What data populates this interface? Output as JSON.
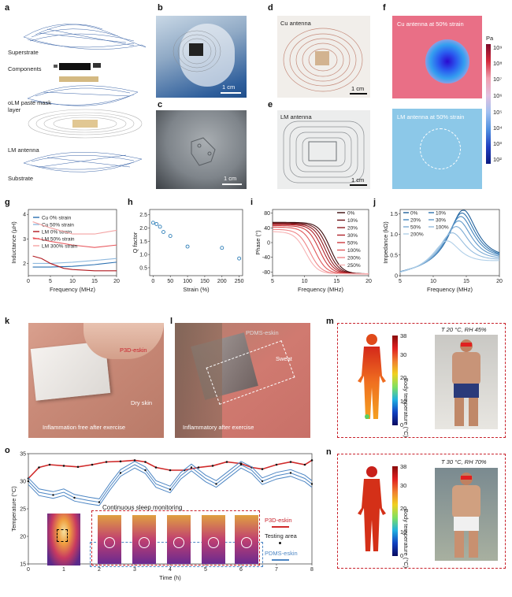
{
  "panels": {
    "a": {
      "label": "a",
      "layers": [
        "Superstrate",
        "Components",
        "oLM paste mask layer",
        "LM antenna",
        "Substrate"
      ]
    },
    "b": {
      "label": "b",
      "scale": "1 cm"
    },
    "c": {
      "label": "c",
      "scale": "1 cm"
    },
    "d": {
      "label": "d",
      "title": "Cu antenna",
      "scale": "1 cm"
    },
    "e": {
      "label": "e",
      "title": "LM antenna",
      "scale": "1 cm"
    },
    "f": {
      "label": "f",
      "top_title": "Cu antenna at 50% strain",
      "bottom_title": "LM antenna at 50% strain",
      "unit": "Pa",
      "ticks": [
        "10⁹",
        "10⁸",
        "10⁷",
        "10⁶",
        "10⁵",
        "10⁴",
        "10³",
        "10²"
      ]
    },
    "k": {
      "label": "k",
      "tag": "P3D-eskin",
      "note1": "Dry skin",
      "note2": "Inflammation free after exercise"
    },
    "l": {
      "label": "l",
      "tag": "PDMS-eskin",
      "note1": "Sweat",
      "note2": "Inflammatory after exercise"
    },
    "m": {
      "label": "m",
      "condition": "T 20 °C, RH 45%",
      "cbar_max": "38",
      "cbar_min": "0",
      "cbar_ticks": [
        "38",
        "30",
        "20",
        "10",
        "0"
      ],
      "cbar_label": "Body temperature (°C)"
    },
    "n": {
      "label": "n",
      "condition": "T 30 °C, RH 70%",
      "cbar_ticks": [
        "38",
        "30",
        "20",
        "10",
        "0"
      ],
      "cbar_label": "Body temperature (°C)"
    },
    "o": {
      "label": "o",
      "annotation": "Continuous sleep monitoring",
      "legend": [
        "P3D-eskin",
        "Testing area",
        "PDMS-eskin"
      ]
    }
  },
  "chart_data": [
    {
      "panel": "g",
      "type": "line",
      "xlabel": "Frequency (MHz)",
      "ylabel": "Inductance (µH)",
      "xlim": [
        0,
        20
      ],
      "ylim": [
        1.5,
        4.2
      ],
      "xticks": [
        "0",
        "5",
        "10",
        "15",
        "20"
      ],
      "yticks": [
        "2",
        "3",
        "4"
      ],
      "series": [
        {
          "name": "Cu 0% strain",
          "color": "#2a6fb0",
          "x": [
            1,
            5,
            10,
            15,
            20
          ],
          "y": [
            1.85,
            1.85,
            1.88,
            1.95,
            2.05
          ]
        },
        {
          "name": "Cu 50% strain",
          "color": "#8fb9de",
          "x": [
            1,
            5,
            10,
            15,
            20
          ],
          "y": [
            2.0,
            2.0,
            2.05,
            2.12,
            2.2
          ]
        },
        {
          "name": "LM 0% strain",
          "color": "#b0171e",
          "x": [
            1,
            3,
            5,
            8,
            10,
            15,
            20
          ],
          "y": [
            2.3,
            2.2,
            2.0,
            1.8,
            1.75,
            1.7,
            1.7
          ]
        },
        {
          "name": "LM 50% strain",
          "color": "#e8585e",
          "x": [
            1,
            5,
            10,
            15,
            20
          ],
          "y": [
            3.05,
            2.9,
            2.75,
            2.65,
            2.75
          ]
        },
        {
          "name": "LM 300% strain",
          "color": "#f4a3a3",
          "x": [
            1,
            5,
            10,
            15,
            20
          ],
          "y": [
            3.7,
            3.45,
            3.2,
            3.2,
            3.35
          ]
        }
      ]
    },
    {
      "panel": "h",
      "type": "scatter",
      "xlabel": "Strain (%)",
      "ylabel": "Q factor",
      "xlim": [
        -10,
        260
      ],
      "ylim": [
        0.2,
        2.7
      ],
      "xticks": [
        "0",
        "50",
        "100",
        "150",
        "200",
        "250"
      ],
      "yticks": [
        "0.5",
        "1.0",
        "1.5",
        "2.0",
        "2.5"
      ],
      "x": [
        0,
        10,
        20,
        30,
        50,
        100,
        200,
        250
      ],
      "y": [
        2.2,
        2.15,
        2.05,
        1.85,
        1.7,
        1.3,
        1.25,
        0.85
      ]
    },
    {
      "panel": "i",
      "type": "line",
      "xlabel": "Frequency (MHz)",
      "ylabel": "Phase (°)",
      "xlim": [
        5,
        20
      ],
      "ylim": [
        -90,
        90
      ],
      "xticks": [
        "5",
        "10",
        "15",
        "20"
      ],
      "yticks": [
        "-80",
        "-40",
        "0",
        "40",
        "80"
      ],
      "series": [
        {
          "name": "0%",
          "color": "#3a0a0c",
          "f0": 14.0,
          "top": 55
        },
        {
          "name": "10%",
          "color": "#6a1015",
          "f0": 13.6,
          "top": 53
        },
        {
          "name": "20%",
          "color": "#8e1a1f",
          "f0": 13.2,
          "top": 51
        },
        {
          "name": "30%",
          "color": "#b02229",
          "f0": 12.8,
          "top": 49
        },
        {
          "name": "50%",
          "color": "#cc3a3e",
          "f0": 12.3,
          "top": 46
        },
        {
          "name": "100%",
          "color": "#e0585a",
          "f0": 11.6,
          "top": 42
        },
        {
          "name": "200%",
          "color": "#ef8386",
          "f0": 10.8,
          "top": 36
        },
        {
          "name": "250%",
          "color": "#f7b2b3",
          "f0": 10.2,
          "top": 30
        }
      ]
    },
    {
      "panel": "j",
      "type": "line",
      "xlabel": "Frequency (MHz)",
      "ylabel": "Impedance (kΩ)",
      "xlim": [
        5,
        20
      ],
      "ylim": [
        0,
        1.6
      ],
      "xticks": [
        "5",
        "10",
        "15",
        "20"
      ],
      "yticks": [
        "0",
        "0.5",
        "1.0",
        "1.5"
      ],
      "series": [
        {
          "name": "0%",
          "color": "#1f5f9a",
          "f0": 14.5,
          "peak": 1.4
        },
        {
          "name": "10%",
          "color": "#2d72ae",
          "f0": 14.3,
          "peak": 1.33
        },
        {
          "name": "20%",
          "color": "#4585bd",
          "f0": 14.1,
          "peak": 1.25
        },
        {
          "name": "30%",
          "color": "#5f98c9",
          "f0": 13.8,
          "peak": 1.15
        },
        {
          "name": "50%",
          "color": "#7aaad4",
          "f0": 13.4,
          "peak": 1.02
        },
        {
          "name": "100%",
          "color": "#94bcde",
          "f0": 12.8,
          "peak": 0.88
        },
        {
          "name": "200%",
          "color": "#b0cfe8",
          "f0": 12.0,
          "peak": 0.7
        }
      ]
    },
    {
      "panel": "o",
      "type": "line",
      "xlabel": "Time (h)",
      "ylabel": "Temperature (°C)",
      "xlim": [
        0,
        8
      ],
      "ylim": [
        15,
        35
      ],
      "xticks": [
        "0",
        "1",
        "2",
        "3",
        "4",
        "5",
        "6",
        "7",
        "8"
      ],
      "yticks": [
        "15",
        "20",
        "25",
        "30",
        "35"
      ],
      "series": [
        {
          "name": "P3D-eskin",
          "color": "#d02a2a",
          "x": [
            0,
            0.3,
            0.6,
            1,
            1.4,
            1.8,
            2.2,
            2.6,
            3,
            3.3,
            3.6,
            4,
            4.4,
            4.8,
            5.2,
            5.6,
            6,
            6.3,
            6.6,
            7,
            7.4,
            7.8,
            8
          ],
          "y": [
            30.5,
            32.5,
            33,
            32.8,
            32.6,
            33,
            33.5,
            33.6,
            33.8,
            33.5,
            32.5,
            32,
            32,
            32.5,
            32.8,
            33.5,
            33.2,
            32.5,
            32.2,
            33,
            33.5,
            33,
            33.8
          ]
        },
        {
          "name": "PDMS-eskin",
          "color": "#4d86c4",
          "x": [
            0,
            0.3,
            0.7,
            1,
            1.3,
            1.7,
            2,
            2.3,
            2.6,
            3,
            3.3,
            3.6,
            4,
            4.3,
            4.6,
            5,
            5.3,
            5.6,
            6,
            6.3,
            6.6,
            7,
            7.4,
            7.8,
            8
          ],
          "y": [
            30,
            28,
            27.5,
            28,
            27,
            26.5,
            26.2,
            29,
            31.5,
            33,
            32,
            29.5,
            28.5,
            31,
            32.5,
            30.5,
            29.5,
            31,
            33,
            32,
            30,
            31,
            31.5,
            30.5,
            29.5
          ]
        }
      ]
    }
  ]
}
